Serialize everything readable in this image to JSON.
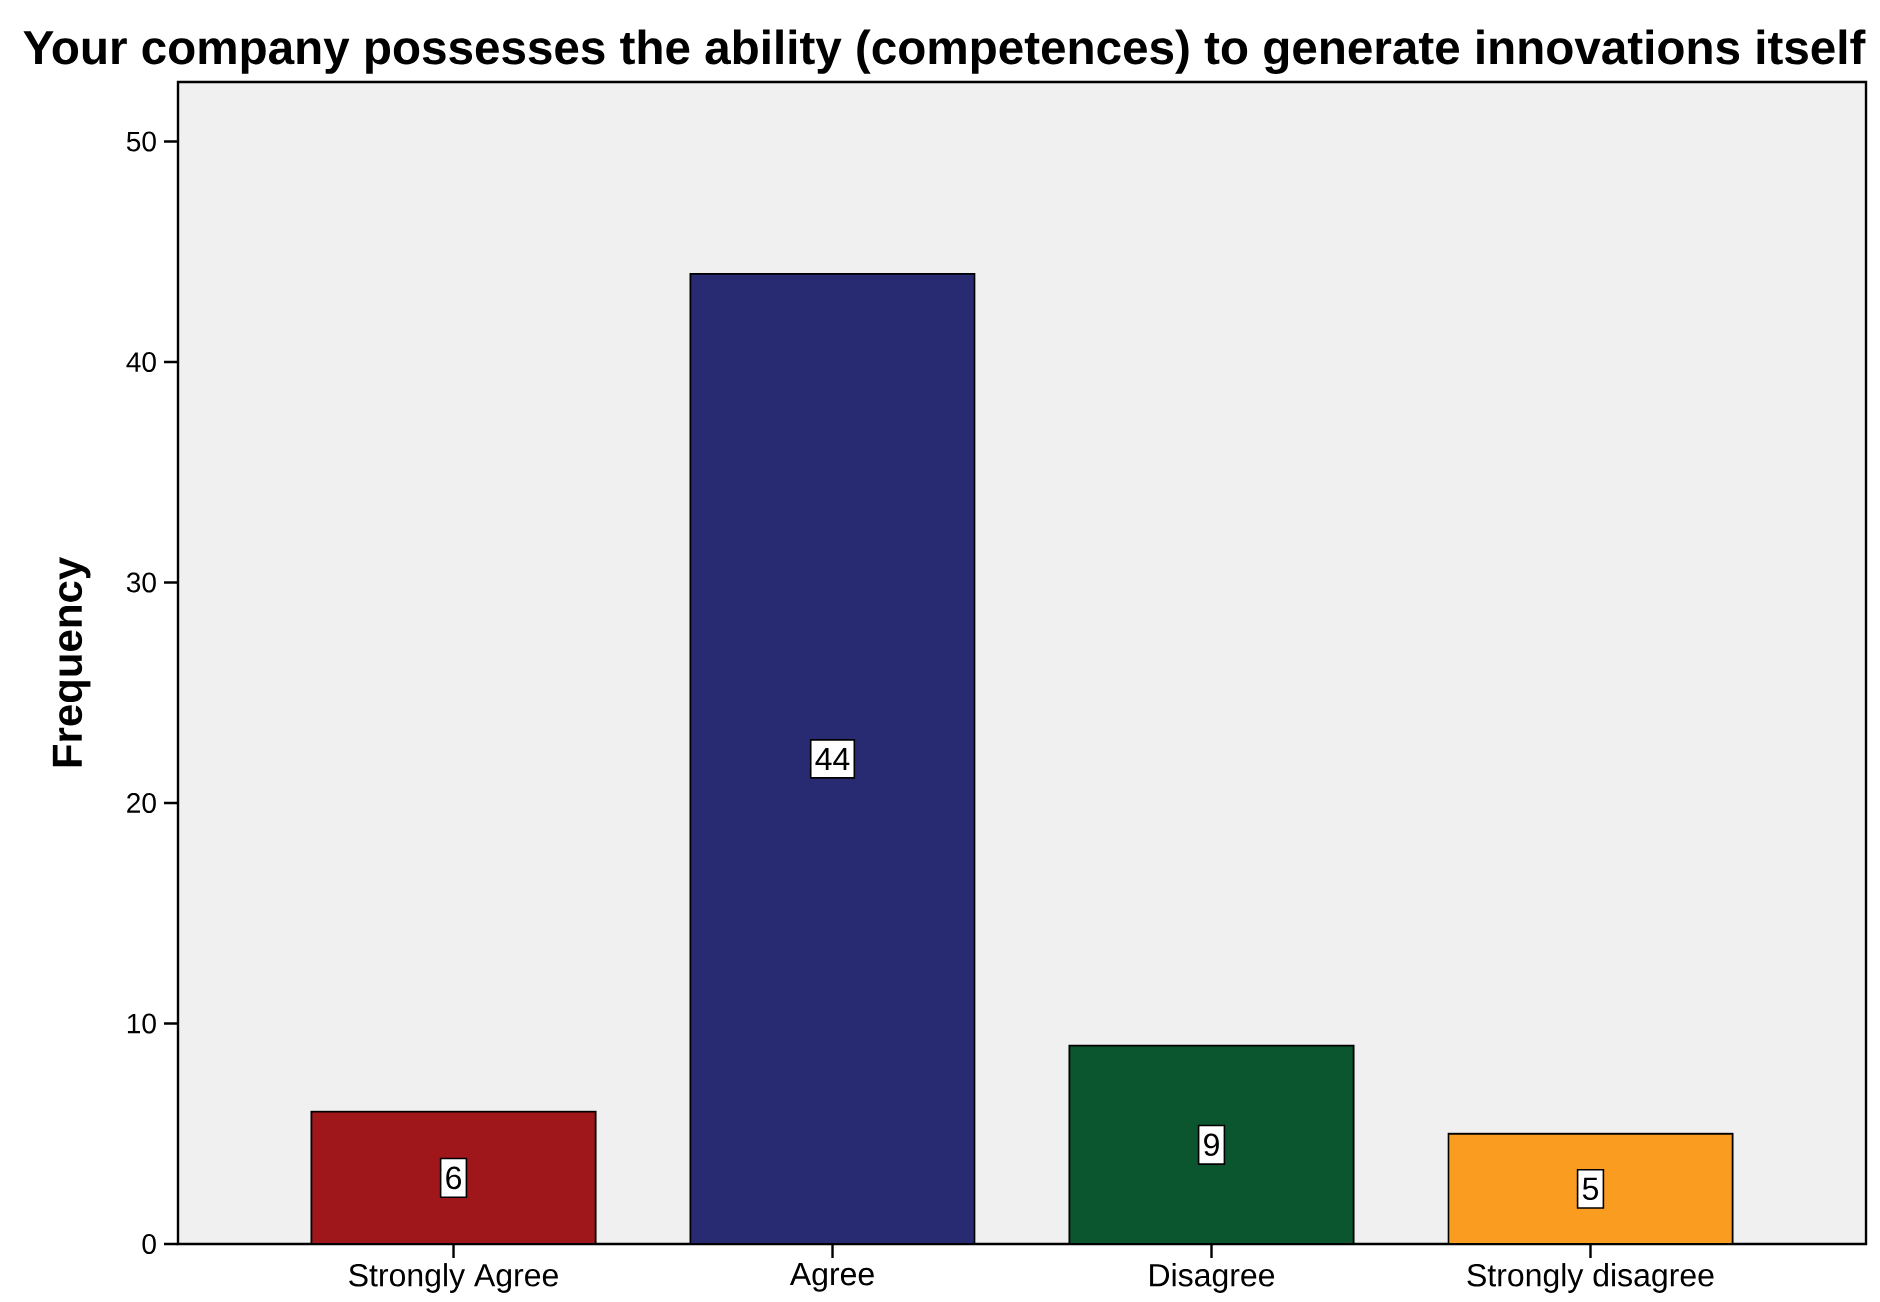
{
  "chart_data": {
    "type": "bar",
    "title": "Your company possesses the ability (competences) to generate innovations itself",
    "ylabel": "Frequency",
    "categories": [
      "Strongly Agree",
      "Agree",
      "Disagree",
      "Strongly disagree"
    ],
    "values": [
      6,
      44,
      9,
      5
    ],
    "colors": [
      "#a0171b",
      "#282a72",
      "#0b562f",
      "#f99c1f"
    ],
    "ylim": [
      0,
      52.7
    ],
    "yticks": [
      0,
      10,
      20,
      30,
      40,
      50
    ],
    "data_labels": true
  }
}
